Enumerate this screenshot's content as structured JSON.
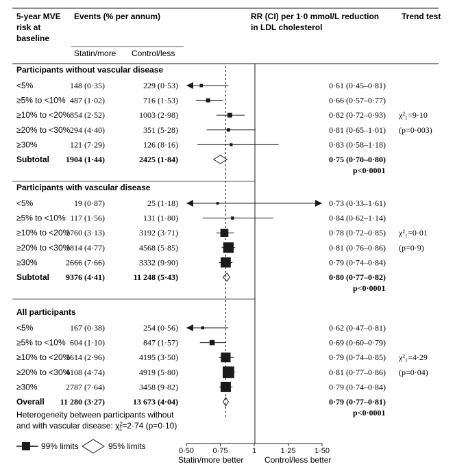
{
  "header": {
    "risk_col": [
      "5-year MVE",
      "risk at",
      "baseline"
    ],
    "events": "Events (% per annum)",
    "statin": "Statin/more",
    "control": "Control/less",
    "rr": [
      "RR (CI) per 1·0 mmol/L reduction",
      "in LDL cholesterol"
    ],
    "trend": "Trend test"
  },
  "footer": {
    "heterogeneity": [
      "Heterogeneity between participants without",
      "and with vascular disease: χ",
      "=2·74 (p=0·10)"
    ],
    "chi_sup": "2",
    "chi_sub": "1"
  },
  "legend": {
    "limits_99": "99% limits",
    "limits_95": "95% limits"
  },
  "chart_data": {
    "type": "forest",
    "xlim": [
      0.5,
      1.5
    ],
    "xticks": [
      "0·50",
      "0·75",
      "1",
      "1·25",
      "1·50"
    ],
    "xtick_values": [
      0.5,
      0.75,
      1.0,
      1.25,
      1.5
    ],
    "reference_value": 1.0,
    "overall_value": 0.79,
    "xlabel_left": "Statin/more better",
    "xlabel_right": "Control/less better",
    "groups": [
      {
        "title": "Participants without vascular disease",
        "rows": [
          {
            "label": "<5%",
            "statin": "148 (0·35)",
            "control": "229 (0·53)",
            "rr_text": "0·61 (0·45–0·81)",
            "rr": 0.61,
            "lo": 0.45,
            "hi": 0.81,
            "size": 0.12,
            "arrow_left": true
          },
          {
            "label": "≥5% to <10%",
            "statin": "487 (1·02)",
            "control": "716 (1·53)",
            "rr_text": "0·66 (0·57–0·77)",
            "rr": 0.66,
            "lo": 0.57,
            "hi": 0.77,
            "size": 0.2
          },
          {
            "label": "≥10% to <20%",
            "statin": "854 (2·52)",
            "control": "1003 (2·98)",
            "rr_text": "0·82 (0·72–0·93)",
            "rr": 0.82,
            "lo": 0.72,
            "hi": 0.93,
            "size": 0.26
          },
          {
            "label": "≥20% to <30%",
            "statin": "294 (4·40)",
            "control": "351 (5·28)",
            "rr_text": "0·81 (0·65–1·01)",
            "rr": 0.81,
            "lo": 0.65,
            "hi": 1.01,
            "size": 0.13
          },
          {
            "label": "≥30%",
            "statin": "121 (7·29)",
            "control": "126 (8·16)",
            "rr_text": "0·83 (0·58–1·18)",
            "rr": 0.83,
            "lo": 0.58,
            "hi": 1.18,
            "size": 0.08
          }
        ],
        "subtotal": {
          "label": "Subtotal",
          "statin": "1904 (1·44)",
          "control": "2425 (1·84)",
          "rr_text": "0·75 (0·70–0·80)",
          "p_text": "p<0·0001",
          "rr": 0.75,
          "lo": 0.7,
          "hi": 0.8
        },
        "trend": [
          "",
          "",
          "χ²₁=9·10",
          "(p=0·003)"
        ]
      },
      {
        "title": "Participants with vascular disease",
        "rows": [
          {
            "label": "<5%",
            "statin": "19 (0·87)",
            "control": "25 (1·18)",
            "rr_text": "0·73 (0·33–1·61)",
            "rr": 0.73,
            "lo": 0.33,
            "hi": 1.61,
            "size": 0.05,
            "arrow_left": true,
            "arrow_right": true
          },
          {
            "label": "≥5% to <10%",
            "statin": "117 (1·56)",
            "control": "131 (1·80)",
            "rr_text": "0·84 (0·62–1·14)",
            "rr": 0.84,
            "lo": 0.62,
            "hi": 1.14,
            "size": 0.1
          },
          {
            "label": "≥10% to <20%",
            "statin": "2760 (3·13)",
            "control": "3192 (3·71)",
            "rr_text": "0·78 (0·72–0·85)",
            "rr": 0.78,
            "lo": 0.72,
            "hi": 0.85,
            "size": 0.58
          },
          {
            "label": "≥20% to <30%",
            "statin": "3814 (4·77)",
            "control": "4568 (5·85)",
            "rr_text": "0·81 (0·76–0·86)",
            "rr": 0.81,
            "lo": 0.76,
            "hi": 0.86,
            "size": 0.82
          },
          {
            "label": "≥30%",
            "statin": "2666 (7·66)",
            "control": "3332 (9·90)",
            "rr_text": "0·79 (0·74–0·84)",
            "rr": 0.79,
            "lo": 0.74,
            "hi": 0.84,
            "size": 0.78
          }
        ],
        "subtotal": {
          "label": "Subtotal",
          "statin": "9376 (4·41)",
          "control": "11 248 (5·43)",
          "rr_text": "0·80 (0·77–0·82)",
          "p_text": "p<0·0001",
          "rr": 0.8,
          "lo": 0.77,
          "hi": 0.82
        },
        "trend": [
          "",
          "",
          "χ²₁=0·01",
          "(p=0·9)"
        ]
      },
      {
        "title": "All participants",
        "rows": [
          {
            "label": "<5%",
            "statin": "167 (0·38)",
            "control": "254 (0·56)",
            "rr_text": "0·62 (0·47–0·81)",
            "rr": 0.62,
            "lo": 0.47,
            "hi": 0.81,
            "size": 0.1,
            "arrow_left": true
          },
          {
            "label": "≥5% to <10%",
            "statin": "604 (1·10)",
            "control": "847 (1·57)",
            "rr_text": "0·69 (0·60–0·79)",
            "rr": 0.69,
            "lo": 0.6,
            "hi": 0.79,
            "size": 0.3
          },
          {
            "label": "≥10% to <20%",
            "statin": "3614 (2·96)",
            "control": "4195 (3·50)",
            "rr_text": "0·79 (0·74–0·85)",
            "rr": 0.79,
            "lo": 0.74,
            "hi": 0.85,
            "size": 0.74
          },
          {
            "label": "≥20% to <30%",
            "statin": "4108 (4·74)",
            "control": "4919 (5·80)",
            "rr_text": "0·81 (0·77–0·86)",
            "rr": 0.81,
            "lo": 0.77,
            "hi": 0.86,
            "size": 0.92
          },
          {
            "label": "≥30%",
            "statin": "2787 (7·64)",
            "control": "3458 (9·82)",
            "rr_text": "0·79 (0·74–0·84)",
            "rr": 0.79,
            "lo": 0.74,
            "hi": 0.84,
            "size": 0.8
          }
        ],
        "subtotal": {
          "label": "Overall",
          "statin": "11 280 (3·27)",
          "control": "13 673 (4·04)",
          "rr_text": "0·79 (0·77–0·81)",
          "p_text": "p<0·0001",
          "rr": 0.79,
          "lo": 0.77,
          "hi": 0.81
        },
        "trend": [
          "",
          "",
          "χ²₁=4·29",
          "(p=0·04)"
        ]
      }
    ]
  }
}
